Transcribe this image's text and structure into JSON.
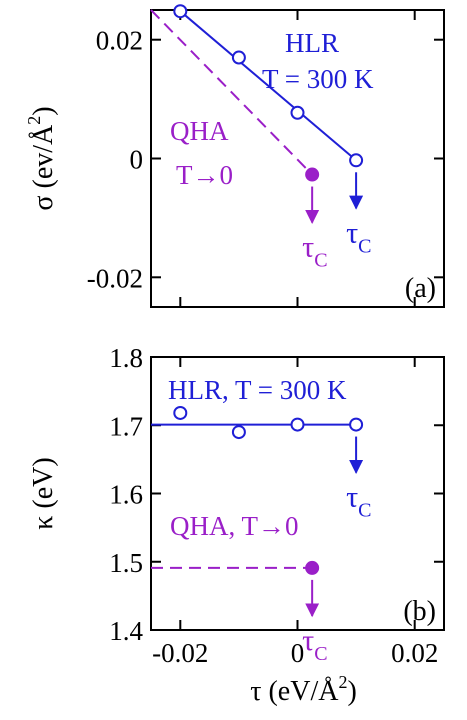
{
  "colors": {
    "hlr": "#1f1fd6",
    "qha": "#9a1fc8",
    "axis": "#000000"
  },
  "chart_data": [
    {
      "panel_label": "(a)",
      "type": "line",
      "xlim": [
        -0.025,
        0.025
      ],
      "ylim": [
        -0.025,
        0.025
      ],
      "xticks": [
        -0.02,
        0,
        0.02
      ],
      "yticks": [
        {
          "value": 0.02,
          "label": "0.02"
        },
        {
          "value": 0,
          "label": "0"
        },
        {
          "value": -0.02,
          "label": "-0.02"
        }
      ],
      "ylabel": {
        "symbol": "σ",
        "unit": "(ev/Å",
        "exp": "2",
        "close": ")"
      },
      "series": [
        {
          "key": "hlr",
          "label_lines": [
            "HLR",
            "T = 300 K"
          ],
          "x": [
            -0.02,
            -0.01,
            0.0,
            0.01
          ],
          "y": [
            0.0248,
            0.017,
            0.0077,
            -0.0003
          ],
          "line_x": [
            -0.02,
            0.01
          ],
          "line_y": [
            0.0248,
            -0.0003
          ],
          "marker": "open-circle",
          "line_style": "solid",
          "critical_point": {
            "x": 0.01,
            "y": -0.0003,
            "label": "τ",
            "sub": "C"
          }
        },
        {
          "key": "qha",
          "label_lines": [
            "QHA",
            "T→0"
          ],
          "x": [
            0.0025
          ],
          "y": [
            -0.0027
          ],
          "line_x": [
            -0.025,
            0.0025
          ],
          "line_y": [
            0.025,
            -0.0027
          ],
          "marker": "filled-circle",
          "line_style": "dashed",
          "critical_point": {
            "x": 0.0025,
            "y": -0.0027,
            "label": "τ",
            "sub": "C"
          }
        }
      ]
    },
    {
      "panel_label": "(b)",
      "type": "line",
      "xlim": [
        -0.025,
        0.025
      ],
      "ylim": [
        1.4,
        1.8
      ],
      "xticks": [
        {
          "value": -0.02,
          "label": "-0.02"
        },
        {
          "value": 0,
          "label": "0"
        },
        {
          "value": 0.02,
          "label": "0.02"
        }
      ],
      "yticks": [
        {
          "value": 1.8,
          "label": "1.8"
        },
        {
          "value": 1.7,
          "label": "1.7"
        },
        {
          "value": 1.6,
          "label": "1.6"
        },
        {
          "value": 1.5,
          "label": "1.5"
        },
        {
          "value": 1.4,
          "label": "1.4"
        }
      ],
      "ylabel": {
        "symbol": "κ",
        "unit": "(eV)"
      },
      "xlabel": {
        "symbol": "τ",
        "unit": "(eV/Å",
        "exp": "2",
        "close": ")"
      },
      "series": [
        {
          "key": "hlr",
          "label": "HLR, T = 300 K",
          "x": [
            -0.02,
            -0.01,
            0.0,
            0.01
          ],
          "y": [
            1.718,
            1.69,
            1.701,
            1.701
          ],
          "line_x": [
            -0.025,
            0.01
          ],
          "line_y": [
            1.701,
            1.701
          ],
          "marker": "open-circle",
          "line_style": "solid",
          "critical_point": {
            "x": 0.01,
            "y": 1.701,
            "label": "τ",
            "sub": "C"
          }
        },
        {
          "key": "qha",
          "label": "QHA, T→0",
          "x": [
            0.0025
          ],
          "y": [
            1.491
          ],
          "line_x": [
            -0.025,
            0.0025
          ],
          "line_y": [
            1.491,
            1.491
          ],
          "marker": "filled-circle",
          "line_style": "dashed",
          "critical_point": {
            "x": 0.0025,
            "y": 1.491,
            "label": "τ",
            "sub": "C"
          }
        }
      ]
    }
  ]
}
